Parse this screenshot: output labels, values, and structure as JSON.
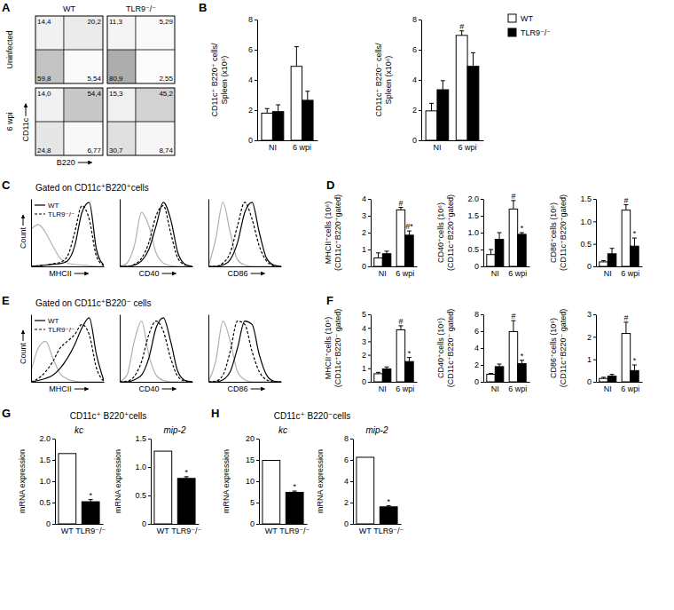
{
  "chart_data": [
    {
      "type": "quadrant",
      "panel_label": "A",
      "column_labels": [
        "WT",
        "TLR9⁻/⁻"
      ],
      "row_labels": [
        "Uninfected",
        "6 wpi"
      ],
      "xlabel": "B220",
      "ylabel": "CD11c",
      "plots": [
        {
          "values": [
            14.4,
            20.2,
            59.8,
            5.54
          ],
          "value_labels": [
            "14,4",
            "20,2",
            "59,8",
            "5,54"
          ]
        },
        {
          "values": [
            11.3,
            5.29,
            80.9,
            2.55
          ],
          "value_labels": [
            "11,3",
            "5,29",
            "80,9",
            "2,55"
          ]
        },
        {
          "values": [
            14.0,
            54.4,
            24.8,
            6.77
          ],
          "value_labels": [
            "14,0",
            "54,4",
            "24,8",
            "6,77"
          ]
        },
        {
          "values": [
            15.3,
            45.2,
            30.7,
            8.74
          ],
          "value_labels": [
            "15,3",
            "45,2",
            "30,7",
            "8,74"
          ]
        }
      ]
    },
    {
      "type": "bar",
      "panel_label": "B",
      "ylabel": [
        "CD11c⁺ B220⁺ cells/",
        "Spleen (x10⁶)"
      ],
      "categories": [
        "NI",
        "6 wpi"
      ],
      "ylim": [
        0,
        8
      ],
      "yticks": [
        0,
        2,
        4,
        6,
        8
      ],
      "series": [
        {
          "color": "#ffffff",
          "values": [
            1.8,
            4.9
          ],
          "errors": [
            0.3,
            1.3
          ]
        },
        {
          "color": "#000000",
          "values": [
            1.9,
            2.65
          ],
          "errors": [
            0.45,
            0.6
          ]
        }
      ]
    },
    {
      "type": "bar",
      "ylabel": [
        "CD11c⁺ B220⁻ cells/",
        "Spleen (x10⁶)"
      ],
      "categories": [
        "NI",
        "6 wpi"
      ],
      "ylim": [
        0,
        8
      ],
      "yticks": [
        0,
        2,
        4,
        6,
        8
      ],
      "legend": "right",
      "series": [
        {
          "name": "WT",
          "color": "#ffffff",
          "values": [
            1.95,
            6.95
          ],
          "errors": [
            0.5,
            0.3
          ],
          "symbols": [
            null,
            "#"
          ]
        },
        {
          "name": "TLR9⁻/⁻",
          "color": "#000000",
          "values": [
            3.35,
            4.9
          ],
          "errors": [
            0.6,
            0.9
          ]
        }
      ]
    },
    {
      "type": "line",
      "panel_label": "C",
      "group_title": "Gated on CD11c⁺B220⁺cells",
      "legend": "top-left",
      "xlabel": "MHCII",
      "ylabel": "Count",
      "tick_labels": false,
      "x": [
        0,
        10,
        20,
        30,
        40,
        50,
        60,
        70,
        80,
        90,
        100
      ],
      "xlim": [
        0,
        100
      ],
      "ylim": [
        0,
        100
      ],
      "series": [
        {
          "color": "#b0b0b0",
          "line_style": "solid",
          "values": [
            55,
            62,
            50,
            30,
            12,
            5,
            3,
            2,
            1,
            0,
            0
          ]
        },
        {
          "name": "WT",
          "color": "#000000",
          "line_style": "solid",
          "values": [
            0,
            1,
            2,
            3,
            4,
            8,
            30,
            80,
            95,
            25,
            2
          ]
        },
        {
          "name": "TLR9⁻/⁻",
          "color": "#000000",
          "line_style": "dashed",
          "values": [
            0,
            1,
            2,
            4,
            6,
            15,
            50,
            90,
            70,
            15,
            1
          ]
        }
      ]
    },
    {
      "type": "line",
      "xlabel": "CD40",
      "tick_labels": false,
      "x": [
        0,
        10,
        20,
        30,
        40,
        50,
        60,
        70,
        80,
        90,
        100
      ],
      "xlim": [
        0,
        100
      ],
      "ylim": [
        0,
        100
      ],
      "series": [
        {
          "color": "#b0b0b0",
          "line_style": "solid",
          "values": [
            0,
            5,
            30,
            80,
            60,
            20,
            5,
            1,
            0,
            0,
            0
          ]
        },
        {
          "color": "#000000",
          "line_style": "solid",
          "values": [
            0,
            0,
            2,
            8,
            25,
            60,
            95,
            70,
            20,
            3,
            0
          ]
        },
        {
          "color": "#000000",
          "line_style": "dashed",
          "values": [
            0,
            0,
            3,
            12,
            35,
            75,
            90,
            50,
            12,
            2,
            0
          ]
        }
      ]
    },
    {
      "type": "line",
      "xlabel": "CD86",
      "tick_labels": false,
      "x": [
        0,
        10,
        20,
        30,
        40,
        50,
        60,
        70,
        80,
        90,
        100
      ],
      "xlim": [
        0,
        100
      ],
      "ylim": [
        0,
        100
      ],
      "series": [
        {
          "color": "#b0b0b0",
          "line_style": "solid",
          "values": [
            0,
            40,
            95,
            50,
            10,
            2,
            0,
            0,
            0,
            0,
            0
          ]
        },
        {
          "color": "#000000",
          "line_style": "solid",
          "values": [
            0,
            0,
            2,
            10,
            35,
            80,
            95,
            50,
            12,
            2,
            0
          ]
        },
        {
          "color": "#000000",
          "line_style": "dashed",
          "values": [
            0,
            0,
            5,
            20,
            60,
            95,
            70,
            30,
            8,
            1,
            0
          ]
        }
      ]
    },
    {
      "type": "bar",
      "panel_label": "D",
      "ylabel": [
        "MHCII⁺cells (10⁶)",
        "(CD11c⁺B220⁺gated)"
      ],
      "categories": [
        "NI",
        "6 wpi"
      ],
      "ylim": [
        0,
        4
      ],
      "yticks": [
        0,
        1,
        2,
        3,
        4
      ],
      "series": [
        {
          "color": "#ffffff",
          "values": [
            0.5,
            3.35
          ],
          "errors": [
            0.3,
            0.15
          ],
          "symbols": [
            null,
            "#"
          ]
        },
        {
          "color": "#000000",
          "values": [
            0.75,
            1.85
          ],
          "errors": [
            0.15,
            0.25
          ],
          "symbols": [
            null,
            "#*"
          ]
        }
      ]
    },
    {
      "type": "bar",
      "ylabel": [
        "CD40⁺cells (10⁶)",
        "(CD11c⁺B220⁺gated)"
      ],
      "categories": [
        "NI",
        "6 wpi"
      ],
      "ylim": [
        0,
        2
      ],
      "yticks": [
        0,
        0.5,
        {
          "value": 1,
          "label": "1.0"
        },
        1.5,
        {
          "value": 2,
          "label": "2.0"
        }
      ],
      "series": [
        {
          "color": "#ffffff",
          "values": [
            0.35,
            1.7
          ],
          "errors": [
            0.15,
            0.25
          ],
          "symbols": [
            null,
            "#"
          ]
        },
        {
          "color": "#000000",
          "values": [
            0.8,
            0.95
          ],
          "errors": [
            0.2,
            0.05
          ],
          "symbols": [
            null,
            "*"
          ]
        }
      ]
    },
    {
      "type": "bar",
      "ylabel": [
        "CD86⁺cells (10⁶)",
        "(CD11c⁺B220⁺gated)"
      ],
      "categories": [
        "NI",
        "6 wpi"
      ],
      "ylim": [
        0,
        1.5
      ],
      "yticks": [
        0,
        0.5,
        {
          "value": 1,
          "label": "1.0"
        },
        1.5
      ],
      "series": [
        {
          "color": "#ffffff",
          "values": [
            0.1,
            1.25
          ],
          "errors": [
            0.03,
            0.12
          ],
          "symbols": [
            null,
            "#"
          ]
        },
        {
          "color": "#000000",
          "values": [
            0.28,
            0.45
          ],
          "errors": [
            0.12,
            0.18
          ],
          "symbols": [
            null,
            "*"
          ]
        }
      ]
    },
    {
      "type": "line",
      "panel_label": "E",
      "group_title": "Gated on CD11c⁺B220⁻ cells",
      "legend": "top-left",
      "xlabel": "MHCII",
      "ylabel": "Count",
      "tick_labels": false,
      "x": [
        0,
        10,
        20,
        30,
        40,
        50,
        60,
        70,
        80,
        90,
        100
      ],
      "xlim": [
        0,
        100
      ],
      "ylim": [
        0,
        100
      ],
      "series": [
        {
          "color": "#b0b0b0",
          "line_style": "solid",
          "values": [
            15,
            50,
            60,
            35,
            12,
            4,
            1,
            0,
            0,
            0,
            0
          ]
        },
        {
          "name": "WT",
          "color": "#000000",
          "line_style": "solid",
          "values": [
            0,
            2,
            5,
            10,
            20,
            35,
            55,
            80,
            95,
            40,
            2
          ]
        },
        {
          "name": "TLR9⁻/⁻",
          "color": "#000000",
          "line_style": "dashed",
          "values": [
            0,
            5,
            15,
            30,
            50,
            60,
            70,
            85,
            70,
            20,
            1
          ]
        }
      ]
    },
    {
      "type": "line",
      "xlabel": "CD40",
      "tick_labels": false,
      "x": [
        0,
        10,
        20,
        30,
        40,
        50,
        60,
        70,
        80,
        90,
        100
      ],
      "xlim": [
        0,
        100
      ],
      "ylim": [
        0,
        100
      ],
      "series": [
        {
          "color": "#b0b0b0",
          "line_style": "solid",
          "values": [
            0,
            10,
            60,
            90,
            40,
            10,
            2,
            0,
            0,
            0,
            0
          ]
        },
        {
          "color": "#000000",
          "line_style": "solid",
          "values": [
            0,
            0,
            3,
            10,
            35,
            80,
            95,
            60,
            15,
            2,
            0
          ]
        },
        {
          "color": "#000000",
          "line_style": "dashed",
          "values": [
            0,
            1,
            8,
            30,
            70,
            90,
            75,
            35,
            8,
            1,
            0
          ]
        }
      ]
    },
    {
      "type": "line",
      "xlabel": "CD86",
      "tick_labels": false,
      "x": [
        0,
        10,
        20,
        30,
        40,
        50,
        60,
        70,
        80,
        90,
        100
      ],
      "xlim": [
        0,
        100
      ],
      "ylim": [
        0,
        100
      ],
      "series": [
        {
          "color": "#b0b0b0",
          "line_style": "solid",
          "values": [
            0,
            30,
            90,
            60,
            15,
            3,
            0,
            0,
            0,
            0,
            0
          ]
        },
        {
          "color": "#000000",
          "line_style": "solid",
          "values": [
            0,
            0,
            3,
            15,
            50,
            90,
            85,
            40,
            10,
            1,
            0
          ]
        },
        {
          "color": "#000000",
          "line_style": "dashed",
          "values": [
            0,
            1,
            10,
            45,
            90,
            85,
            45,
            15,
            3,
            0,
            0
          ]
        }
      ]
    },
    {
      "type": "bar",
      "panel_label": "F",
      "ylabel": [
        "MHCII⁺cells (10⁶)",
        "(CD11c⁺B220⁻ gated)"
      ],
      "categories": [
        "NI",
        "6 wpi"
      ],
      "ylim": [
        0,
        5
      ],
      "yticks": [
        0,
        1,
        2,
        3,
        4,
        5
      ],
      "series": [
        {
          "color": "#ffffff",
          "values": [
            0.6,
            3.85
          ],
          "errors": [
            0.1,
            0.3
          ],
          "symbols": [
            null,
            "#"
          ]
        },
        {
          "color": "#000000",
          "values": [
            0.95,
            1.5
          ],
          "errors": [
            0.15,
            0.3
          ],
          "symbols": [
            null,
            "*"
          ]
        }
      ]
    },
    {
      "type": "bar",
      "ylabel": [
        "CD40⁺cells (10⁶)",
        "(CD11c⁺B220⁻ gated)"
      ],
      "categories": [
        "NI",
        "6 wpi"
      ],
      "ylim": [
        0,
        8
      ],
      "yticks": [
        0,
        2,
        4,
        6,
        8
      ],
      "series": [
        {
          "color": "#ffffff",
          "values": [
            0.9,
            5.95
          ],
          "errors": [
            0.1,
            1.3
          ],
          "symbols": [
            null,
            "#"
          ]
        },
        {
          "color": "#000000",
          "values": [
            1.8,
            2.15
          ],
          "errors": [
            0.3,
            0.4
          ],
          "symbols": [
            null,
            "*"
          ]
        }
      ]
    },
    {
      "type": "bar",
      "ylabel": [
        "CD86⁺cells (10⁶)",
        "(CD11c⁺B220⁻ gated)"
      ],
      "categories": [
        "NI",
        "6 wpi"
      ],
      "ylim": [
        0,
        3
      ],
      "yticks": [
        0,
        1,
        2,
        3
      ],
      "series": [
        {
          "color": "#ffffff",
          "values": [
            0.15,
            2.15
          ],
          "errors": [
            0.05,
            0.5
          ],
          "symbols": [
            null,
            "#"
          ]
        },
        {
          "color": "#000000",
          "values": [
            0.25,
            0.5
          ],
          "errors": [
            0.08,
            0.25
          ],
          "symbols": [
            null,
            "*"
          ]
        }
      ]
    },
    {
      "type": "bar",
      "panel_label": "G",
      "group_title": "CD11c⁺ B220⁺cells",
      "title": "kc",
      "ylabel": "mRNA expression",
      "categories": [
        "WT",
        "TLR9⁻/⁻"
      ],
      "ylim": [
        0,
        2
      ],
      "yticks": [
        0,
        0.5,
        {
          "value": 1,
          "label": "1.0"
        },
        1.5,
        {
          "value": 2,
          "label": "2.0"
        }
      ],
      "series": [
        {
          "colors": [
            "#ffffff",
            "#000000"
          ],
          "values": [
            1.65,
            0.52
          ],
          "errors": [
            null,
            0.05
          ],
          "symbols": [
            null,
            "*"
          ]
        }
      ]
    },
    {
      "type": "bar",
      "title": "mip-2",
      "ylabel": "mRNA expression",
      "categories": [
        "WT",
        "TLR9⁻/⁻"
      ],
      "ylim": [
        0,
        1.5
      ],
      "yticks": [
        0,
        0.5,
        {
          "value": 1,
          "label": "1.0"
        },
        1.5
      ],
      "series": [
        {
          "colors": [
            "#ffffff",
            "#000000"
          ],
          "values": [
            1.28,
            0.8
          ],
          "errors": [
            null,
            0.03
          ],
          "symbols": [
            null,
            "*"
          ]
        }
      ]
    },
    {
      "type": "bar",
      "panel_label": "H",
      "group_title": "CD11c⁺ B220⁻cells",
      "title": "kc",
      "ylabel": "mRNA expression",
      "categories": [
        "WT",
        "TLR9⁻/⁻"
      ],
      "ylim": [
        0,
        20
      ],
      "yticks": [
        0,
        5,
        10,
        15,
        20
      ],
      "series": [
        {
          "colors": [
            "#ffffff",
            "#000000"
          ],
          "values": [
            14.9,
            7.4
          ],
          "errors": [
            null,
            0.3
          ],
          "symbols": [
            null,
            "*"
          ]
        }
      ]
    },
    {
      "type": "bar",
      "title": "mip-2",
      "ylabel": "mRNA expression",
      "categories": [
        "WT",
        "TLR9⁻/⁻"
      ],
      "ylim": [
        0,
        8
      ],
      "yticks": [
        0,
        2,
        4,
        6,
        8
      ],
      "series": [
        {
          "colors": [
            "#ffffff",
            "#000000"
          ],
          "values": [
            6.25,
            1.6
          ],
          "errors": [
            null,
            0.1
          ],
          "symbols": [
            null,
            "*"
          ]
        }
      ]
    }
  ]
}
